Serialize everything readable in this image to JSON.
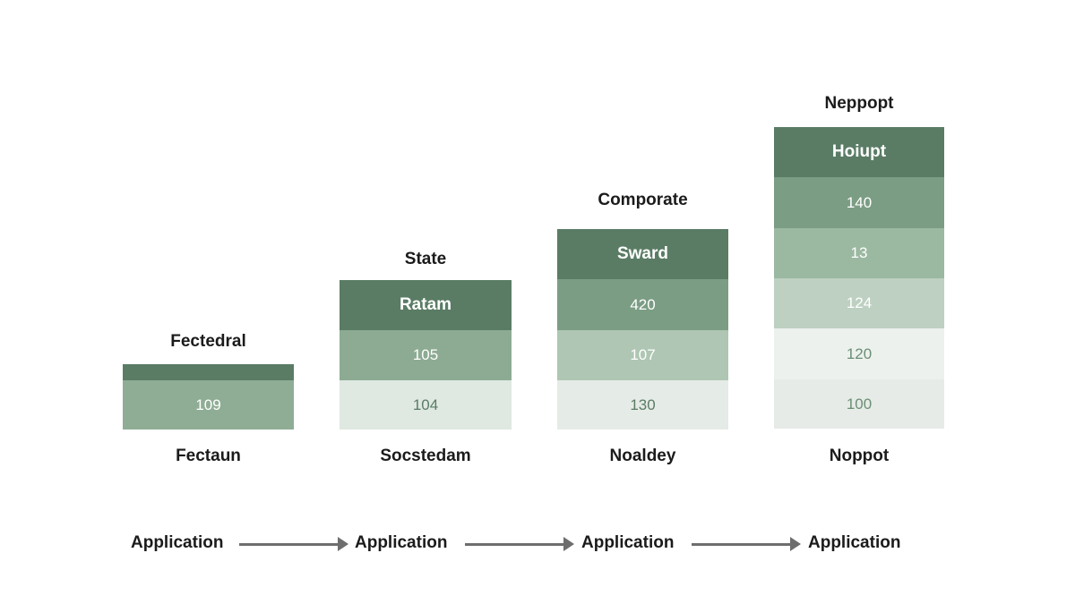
{
  "colors": {
    "header": "#5a7c65",
    "tier1": "#7b9d84",
    "tier2": "#9bb8a1",
    "tier3": "#bdd0c1",
    "tier4": "#dde6df",
    "tier5": "#e9eeea",
    "arrow": "#6e6e6e",
    "text": "#1b1b1b"
  },
  "columns": [
    {
      "title": "Fectedral",
      "label": "Fectaun",
      "header": "",
      "values": [
        "109"
      ]
    },
    {
      "title": "State",
      "label": "Socstedam",
      "header": "Ratam",
      "values": [
        "105",
        "104"
      ]
    },
    {
      "title": "Comporate",
      "label": "Noaldey",
      "header": "Sward",
      "values": [
        "420",
        "107",
        "130"
      ]
    },
    {
      "title": "Neppopt",
      "label": "Noppot",
      "header": "Hoiupt",
      "values": [
        "140",
        "13",
        "124",
        "120",
        "100"
      ]
    }
  ],
  "flow": {
    "items": [
      "Application",
      "Application",
      "Application",
      "Application"
    ]
  }
}
